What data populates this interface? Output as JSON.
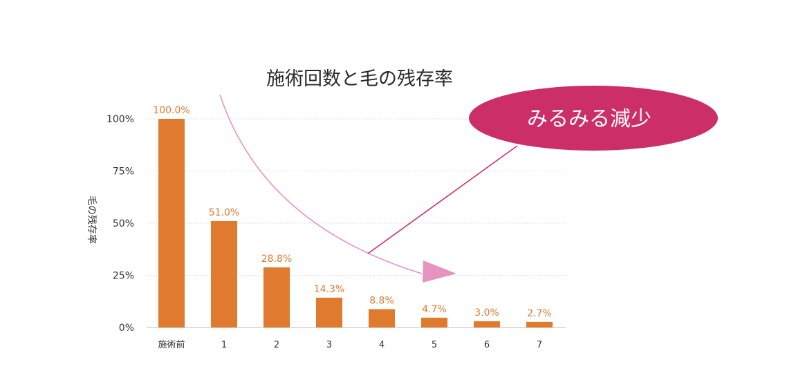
{
  "chart_data": {
    "type": "bar",
    "title": "施術回数と毛の残存率",
    "ylabel": "毛の残存率",
    "xlabel": "",
    "categories": [
      "施術前",
      "1",
      "2",
      "3",
      "4",
      "5",
      "6",
      "7"
    ],
    "values": [
      100.0,
      51.0,
      28.8,
      14.3,
      8.8,
      4.7,
      3.0,
      2.7
    ],
    "value_labels": [
      "100.0%",
      "51.0%",
      "28.8%",
      "14.3%",
      "8.8%",
      "4.7%",
      "3.0%",
      "2.7%"
    ],
    "ylim": [
      0,
      100
    ],
    "yticks": [
      0,
      25,
      50,
      75,
      100
    ],
    "ytick_labels": [
      "0%",
      "25%",
      "50%",
      "75%",
      "100%"
    ],
    "grid": true,
    "bar_color": "#e07a2f",
    "value_label_color": "#e07a2f"
  },
  "callout": {
    "text": "みるみる減少",
    "color": "#cc2f67"
  },
  "arrow_color": "#e693c0"
}
